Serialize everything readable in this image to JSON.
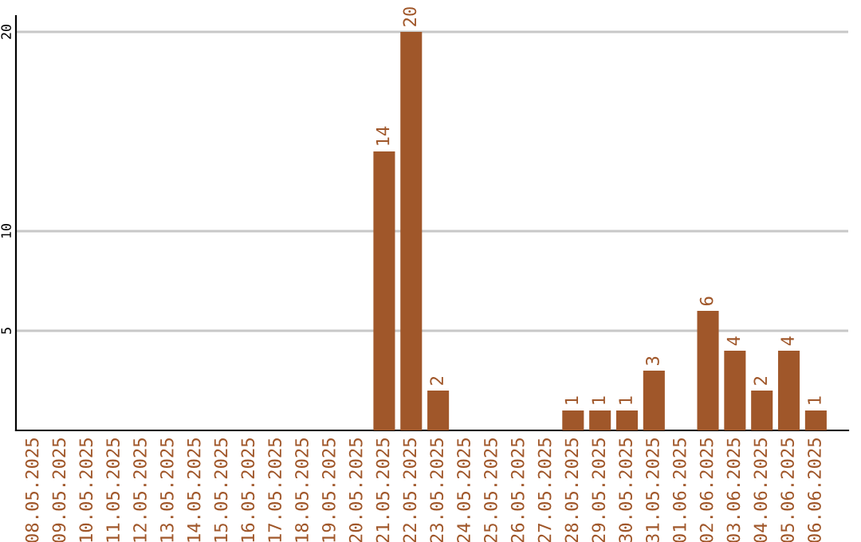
{
  "chart_data": {
    "type": "bar",
    "categories": [
      "08.05.2025",
      "09.05.2025",
      "10.05.2025",
      "11.05.2025",
      "12.05.2025",
      "13.05.2025",
      "14.05.2025",
      "15.05.2025",
      "16.05.2025",
      "17.05.2025",
      "18.05.2025",
      "19.05.2025",
      "20.05.2025",
      "21.05.2025",
      "22.05.2025",
      "23.05.2025",
      "24.05.2025",
      "25.05.2025",
      "26.05.2025",
      "27.05.2025",
      "28.05.2025",
      "29.05.2025",
      "30.05.2025",
      "31.05.2025",
      "01.06.2025",
      "02.06.2025",
      "03.06.2025",
      "04.06.2025",
      "05.06.2025",
      "06.06.2025"
    ],
    "values": [
      0,
      0,
      0,
      0,
      0,
      0,
      0,
      0,
      0,
      0,
      0,
      0,
      0,
      14,
      20,
      2,
      0,
      0,
      0,
      0,
      1,
      1,
      1,
      3,
      0,
      6,
      4,
      2,
      4,
      1
    ],
    "value_labels": [
      null,
      null,
      null,
      null,
      null,
      null,
      null,
      null,
      null,
      null,
      null,
      null,
      null,
      "14",
      "20",
      "2",
      null,
      null,
      null,
      null,
      "1",
      "1",
      "1",
      "3",
      null,
      "6",
      "4",
      "2",
      "4",
      "1"
    ],
    "color": "#a0572a",
    "ylim": [
      0,
      20.8
    ],
    "yticks": [
      5,
      10,
      20
    ],
    "grid": "y"
  }
}
